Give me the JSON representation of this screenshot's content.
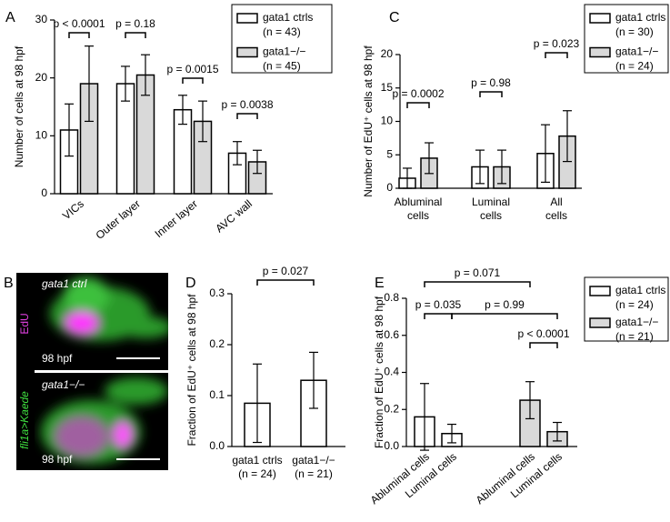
{
  "chart_data": [
    {
      "type": "bar",
      "label": "A",
      "ylabel": "Number of cells at 98 hpf",
      "categories": [
        "VICs",
        "Outer layer",
        "Inner layer",
        "AVC wall"
      ],
      "series": [
        {
          "name": "gata1 ctrls",
          "n": "(n = 43)",
          "color": "#ffffff",
          "values": [
            11,
            19,
            14.5,
            7
          ],
          "errors": [
            4.5,
            3,
            2.5,
            2
          ]
        },
        {
          "name": "gata1−/−",
          "n": "(n = 45)",
          "color": "#d9d9d9",
          "values": [
            19,
            20.5,
            12.5,
            5.5
          ],
          "errors": [
            6.5,
            3.5,
            3.5,
            2
          ]
        }
      ],
      "ylim": [
        0,
        30
      ],
      "yticks": [
        0,
        10,
        20,
        30
      ],
      "annotations": [
        "p < 0.0001",
        "p = 0.18",
        "p = 0.0015",
        "p = 0.0038"
      ]
    },
    {
      "type": "bar",
      "label": "C",
      "ylabel": "Number of EdU⁺ cells at 98 hpf",
      "categories": [
        [
          "Abluminal",
          "cells"
        ],
        [
          "Luminal",
          "cells"
        ],
        [
          "All",
          "cells"
        ]
      ],
      "series": [
        {
          "name": "gata1 ctrls",
          "n": "(n = 30)",
          "color": "#ffffff",
          "values": [
            1.5,
            3.2,
            5.2
          ],
          "errors": [
            1.5,
            2.5,
            4.3
          ]
        },
        {
          "name": "gata1−/−",
          "n": "(n = 24)",
          "color": "#d9d9d9",
          "values": [
            4.5,
            3.2,
            7.8
          ],
          "errors": [
            2.3,
            2.5,
            3.8
          ]
        }
      ],
      "ylim": [
        0,
        20
      ],
      "yticks": [
        0,
        5,
        10,
        15,
        20
      ],
      "annotations": [
        "p = 0.0002",
        "p = 0.98",
        "p = 0.023"
      ]
    },
    {
      "type": "bar",
      "label": "D",
      "ylabel": "Fraction of EdU⁺ cells at 98 hpf",
      "categories": [
        [
          "gata1 ctrls",
          "(n = 24)"
        ],
        [
          "gata1−/−",
          "(n = 21)"
        ]
      ],
      "series": [
        {
          "color": "#ffffff",
          "values": [
            0.085,
            0.13
          ],
          "errors": [
            0.077,
            0.055
          ]
        }
      ],
      "ylim": [
        0,
        0.3
      ],
      "yticks": [
        {
          "value": 0,
          "label": "0.0"
        },
        0.1,
        0.2,
        0.3
      ],
      "annotations": [
        "p = 0.027"
      ]
    },
    {
      "type": "bar",
      "label": "E",
      "ylabel": "Fraction of EdU⁺ cells at 98 hpf",
      "categories": [
        "Abluminal cells",
        "Luminal cells",
        "Abluminal cells",
        "Luminal cells"
      ],
      "series": [
        {
          "name": "gata1 ctrls",
          "n": "(n = 24)",
          "color": "#ffffff",
          "values": [
            0.16,
            0.07,
            null,
            null
          ],
          "errors": [
            0.18,
            0.05,
            null,
            null
          ]
        },
        {
          "name": "gata1−/−",
          "n": "(n = 21)",
          "color": "#d9d9d9",
          "values": [
            null,
            null,
            0.25,
            0.08
          ],
          "errors": [
            null,
            null,
            0.1,
            0.05
          ]
        }
      ],
      "ylim": [
        0,
        0.8
      ],
      "yticks": [
        {
          "value": 0,
          "label": "0.0"
        },
        0.2,
        0.4,
        0.6,
        0.8
      ],
      "annotations": [
        "p = 0.071",
        "p = 0.035",
        "p = 0.99",
        "p < 0.0001"
      ]
    }
  ],
  "image_panel": {
    "label": "B",
    "channels": [
      "EdU",
      "fli1a>Kaede"
    ],
    "top": {
      "genotype": "gata1 ctrl",
      "stage": "98 hpf"
    },
    "bottom": {
      "genotype": "gata1−/−",
      "stage": "98 hpf"
    }
  }
}
